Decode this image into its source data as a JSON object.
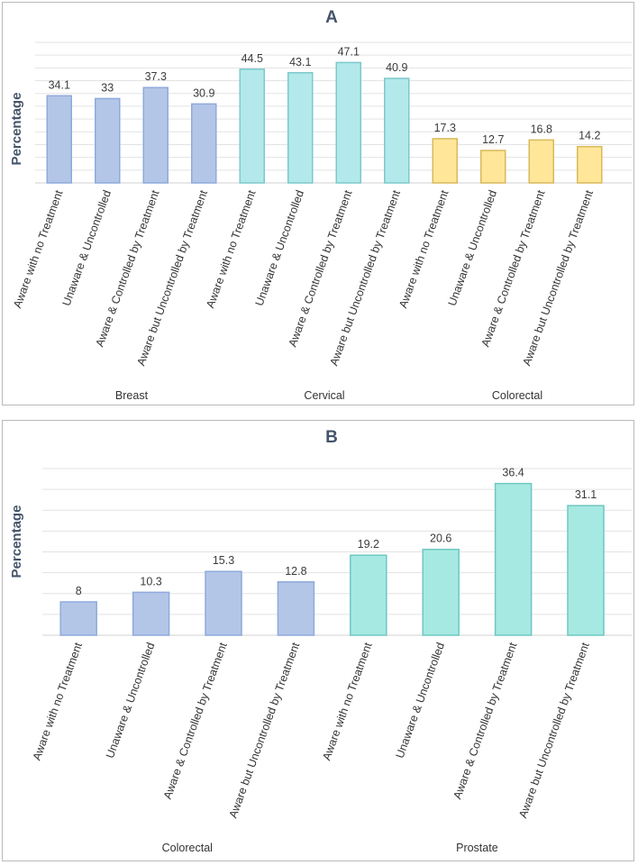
{
  "chart_data": [
    {
      "type": "bar",
      "title": "A",
      "ylabel": "Percentage",
      "xlabel": "",
      "ylim": [
        0,
        55
      ],
      "grid": true,
      "groups": [
        {
          "name": "Breast",
          "color": "#b4c6e7",
          "border": "#8eaadb",
          "categories": [
            "Aware with no Treatment",
            "Unaware & Uncontrolled",
            "Aware & Controlled by Treatment",
            "Aware but Uncontrolled by Treatment"
          ],
          "values": [
            34.1,
            33,
            37.3,
            30.9
          ]
        },
        {
          "name": "Cervical",
          "color": "#b3e9ea",
          "border": "#7cc9cc",
          "categories": [
            "Aware with no Treatment",
            "Unaware & Uncontrolled",
            "Aware & Controlled by Treatment",
            "Aware but Uncontrolled by Treatment"
          ],
          "values": [
            44.5,
            43.1,
            47.1,
            40.9
          ]
        },
        {
          "name": "Colorectal",
          "color": "#ffe699",
          "border": "#d8b95a",
          "categories": [
            "Aware with no Treatment",
            "Unaware & Uncontrolled",
            "Aware & Controlled by Treatment",
            "Aware but Uncontrolled by Treatment"
          ],
          "values": [
            17.3,
            12.7,
            16.8,
            14.2
          ]
        }
      ]
    },
    {
      "type": "bar",
      "title": "B",
      "ylabel": "Percentage",
      "xlabel": "",
      "ylim": [
        0,
        40
      ],
      "grid": true,
      "groups": [
        {
          "name": "Colorectal",
          "color": "#b4c6e7",
          "border": "#8eaadb",
          "categories": [
            "Aware with no Treatment",
            "Unaware & Uncontrolled",
            "Aware & Controlled by Treatment",
            "Aware but Uncontrolled by Treatment"
          ],
          "values": [
            8,
            10.3,
            15.3,
            12.8
          ]
        },
        {
          "name": "Prostate",
          "color": "#a6e9e3",
          "border": "#6fc7c0",
          "categories": [
            "Aware with no Treatment",
            "Unaware & Uncontrolled",
            "Aware & Controlled by Treatment",
            "Aware but Uncontrolled by Treatment"
          ],
          "values": [
            19.2,
            20.6,
            36.4,
            31.1
          ]
        }
      ]
    }
  ]
}
